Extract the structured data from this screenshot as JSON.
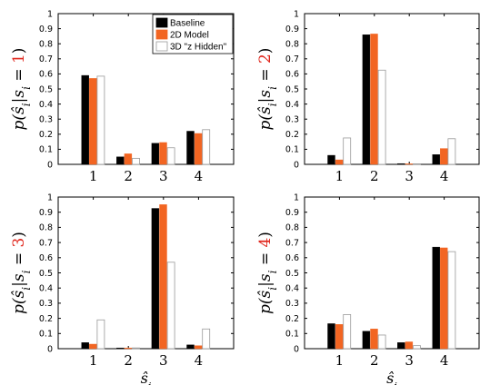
{
  "colors": {
    "baseline": "#000000",
    "model2d": "#f26522",
    "hidden3d": "#ffffff",
    "value_accent": "#e0251b"
  },
  "legend": {
    "entries": [
      "Baseline",
      "2D Model",
      "3D \"z Hidden\""
    ],
    "placement": "top-right of first panel"
  },
  "chart_data": [
    {
      "type": "bar",
      "categories": [
        "1",
        "2",
        "3",
        "4"
      ],
      "ylim": [
        0,
        1
      ],
      "yticks": [
        "0",
        "0.1",
        "0.2",
        "0.3",
        "0.4",
        "0.5",
        "0.6",
        "0.7",
        "0.8",
        "0.9",
        "1"
      ],
      "ylabel_prefix": "p(ŝ",
      "ylabel_sub": "i",
      "ylabel_mid": "|s",
      "ylabel_sub2": "i",
      "ylabel_eq": " = ",
      "ylabel_value": "1",
      "ylabel_suffix": ")",
      "xlabel": "",
      "series": [
        {
          "name": "Baseline",
          "values": [
            0.59,
            0.05,
            0.14,
            0.22
          ]
        },
        {
          "name": "2D Model",
          "values": [
            0.57,
            0.07,
            0.145,
            0.205
          ]
        },
        {
          "name": "3D \"z Hidden\"",
          "values": [
            0.585,
            0.04,
            0.11,
            0.23
          ]
        }
      ]
    },
    {
      "type": "bar",
      "categories": [
        "1",
        "2",
        "3",
        "4"
      ],
      "ylim": [
        0,
        1
      ],
      "yticks": [
        "0",
        "0.1",
        "0.2",
        "0.3",
        "0.4",
        "0.5",
        "0.6",
        "0.7",
        "0.8",
        "0.9",
        "1"
      ],
      "ylabel_prefix": "p(ŝ",
      "ylabel_sub": "i",
      "ylabel_mid": "|s",
      "ylabel_sub2": "i",
      "ylabel_eq": " = ",
      "ylabel_value": "2",
      "ylabel_suffix": ")",
      "xlabel": "",
      "series": [
        {
          "name": "Baseline",
          "values": [
            0.06,
            0.86,
            0.005,
            0.065
          ]
        },
        {
          "name": "2D Model",
          "values": [
            0.03,
            0.865,
            0.003,
            0.105
          ]
        },
        {
          "name": "3D \"z Hidden\"",
          "values": [
            0.175,
            0.625,
            0.003,
            0.17
          ]
        }
      ]
    },
    {
      "type": "bar",
      "categories": [
        "1",
        "2",
        "3",
        "4"
      ],
      "ylim": [
        0,
        1
      ],
      "yticks": [
        "0",
        "0.1",
        "0.2",
        "0.3",
        "0.4",
        "0.5",
        "0.6",
        "0.7",
        "0.8",
        "0.9",
        "1"
      ],
      "ylabel_prefix": "p(ŝ",
      "ylabel_sub": "i",
      "ylabel_mid": "|s",
      "ylabel_sub2": "i",
      "ylabel_eq": " = ",
      "ylabel_value": "3",
      "ylabel_suffix": ")",
      "xlabel_main": "ŝ",
      "xlabel_sub": "i",
      "series": [
        {
          "name": "Baseline",
          "values": [
            0.04,
            0.005,
            0.925,
            0.025
          ]
        },
        {
          "name": "2D Model",
          "values": [
            0.03,
            0.005,
            0.95,
            0.02
          ]
        },
        {
          "name": "3D \"z Hidden\"",
          "values": [
            0.19,
            0.005,
            0.57,
            0.13
          ]
        }
      ]
    },
    {
      "type": "bar",
      "categories": [
        "1",
        "2",
        "3",
        "4"
      ],
      "ylim": [
        0,
        1
      ],
      "yticks": [
        "0",
        "0.1",
        "0.2",
        "0.3",
        "0.4",
        "0.5",
        "0.6",
        "0.7",
        "0.8",
        "0.9",
        "1"
      ],
      "ylabel_prefix": "p(ŝ",
      "ylabel_sub": "i",
      "ylabel_mid": "|s",
      "ylabel_sub2": "i",
      "ylabel_eq": " = ",
      "ylabel_value": "4",
      "ylabel_suffix": ")",
      "xlabel_main": "ŝ",
      "xlabel_sub": "i",
      "series": [
        {
          "name": "Baseline",
          "values": [
            0.165,
            0.115,
            0.04,
            0.67
          ]
        },
        {
          "name": "2D Model",
          "values": [
            0.16,
            0.13,
            0.045,
            0.665
          ]
        },
        {
          "name": "3D \"z Hidden\"",
          "values": [
            0.225,
            0.09,
            0.02,
            0.64
          ]
        }
      ]
    }
  ]
}
